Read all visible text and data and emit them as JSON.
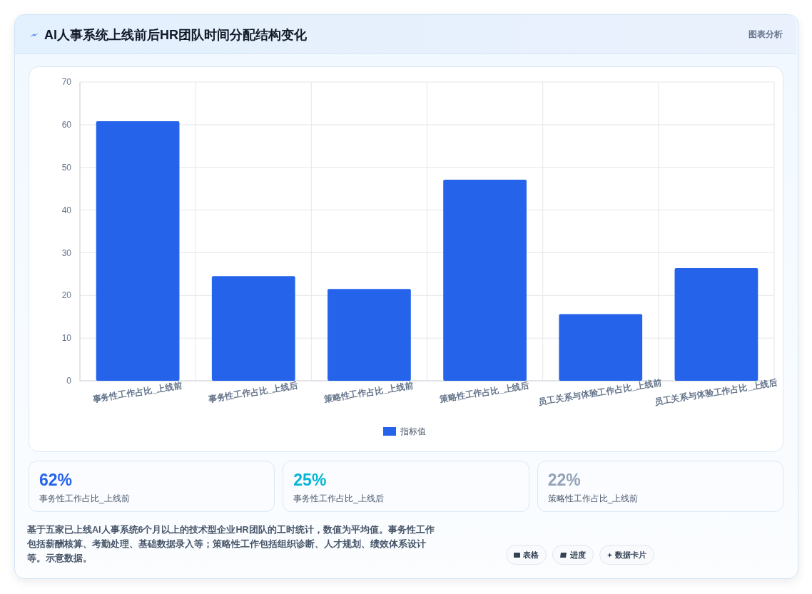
{
  "chart_data": [
    {
      "type": "bar",
      "title": "AI人事系统上线前后HR团队时间分配结构变化",
      "categories": [
        "事务性工作占比_上线前",
        "事务性工作占比_上线后",
        "策略性工作占比_上线前",
        "策略性工作占比_上线后",
        "员工关系与体验工作占比_上线前",
        "员工关系与体验工作占比_上线后"
      ],
      "series": [
        {
          "name": "指标值",
          "color": "#2563eb",
          "values": [
            60.8,
            24.5,
            21.5,
            47.1,
            15.6,
            26.4
          ]
        }
      ],
      "ylim": [
        0,
        70
      ],
      "yticks": [
        0,
        10,
        20,
        30,
        40,
        50,
        60,
        70
      ],
      "grid": true,
      "legend": "bottom",
      "annotations": [
        "图表分析",
        "基于五家已上线AI人事系统6个月以上的技术型企业HR团队的工时统计，数值为平均值。事务性工作包括薪酬核算、考勤处理、基础数据录入等；策略性工作包括组织诊断、人才规划、绩效体系设计等。示意数据。",
        "表格",
        "进度",
        "数据卡片"
      ]
    },
    {
      "type": "other",
      "annotations": [
        "62%",
        "事务性工作占比_上线前",
        "25%",
        "事务性工作占比_上线后",
        "22%",
        "策略性工作占比_上线前"
      ]
    }
  ]
}
